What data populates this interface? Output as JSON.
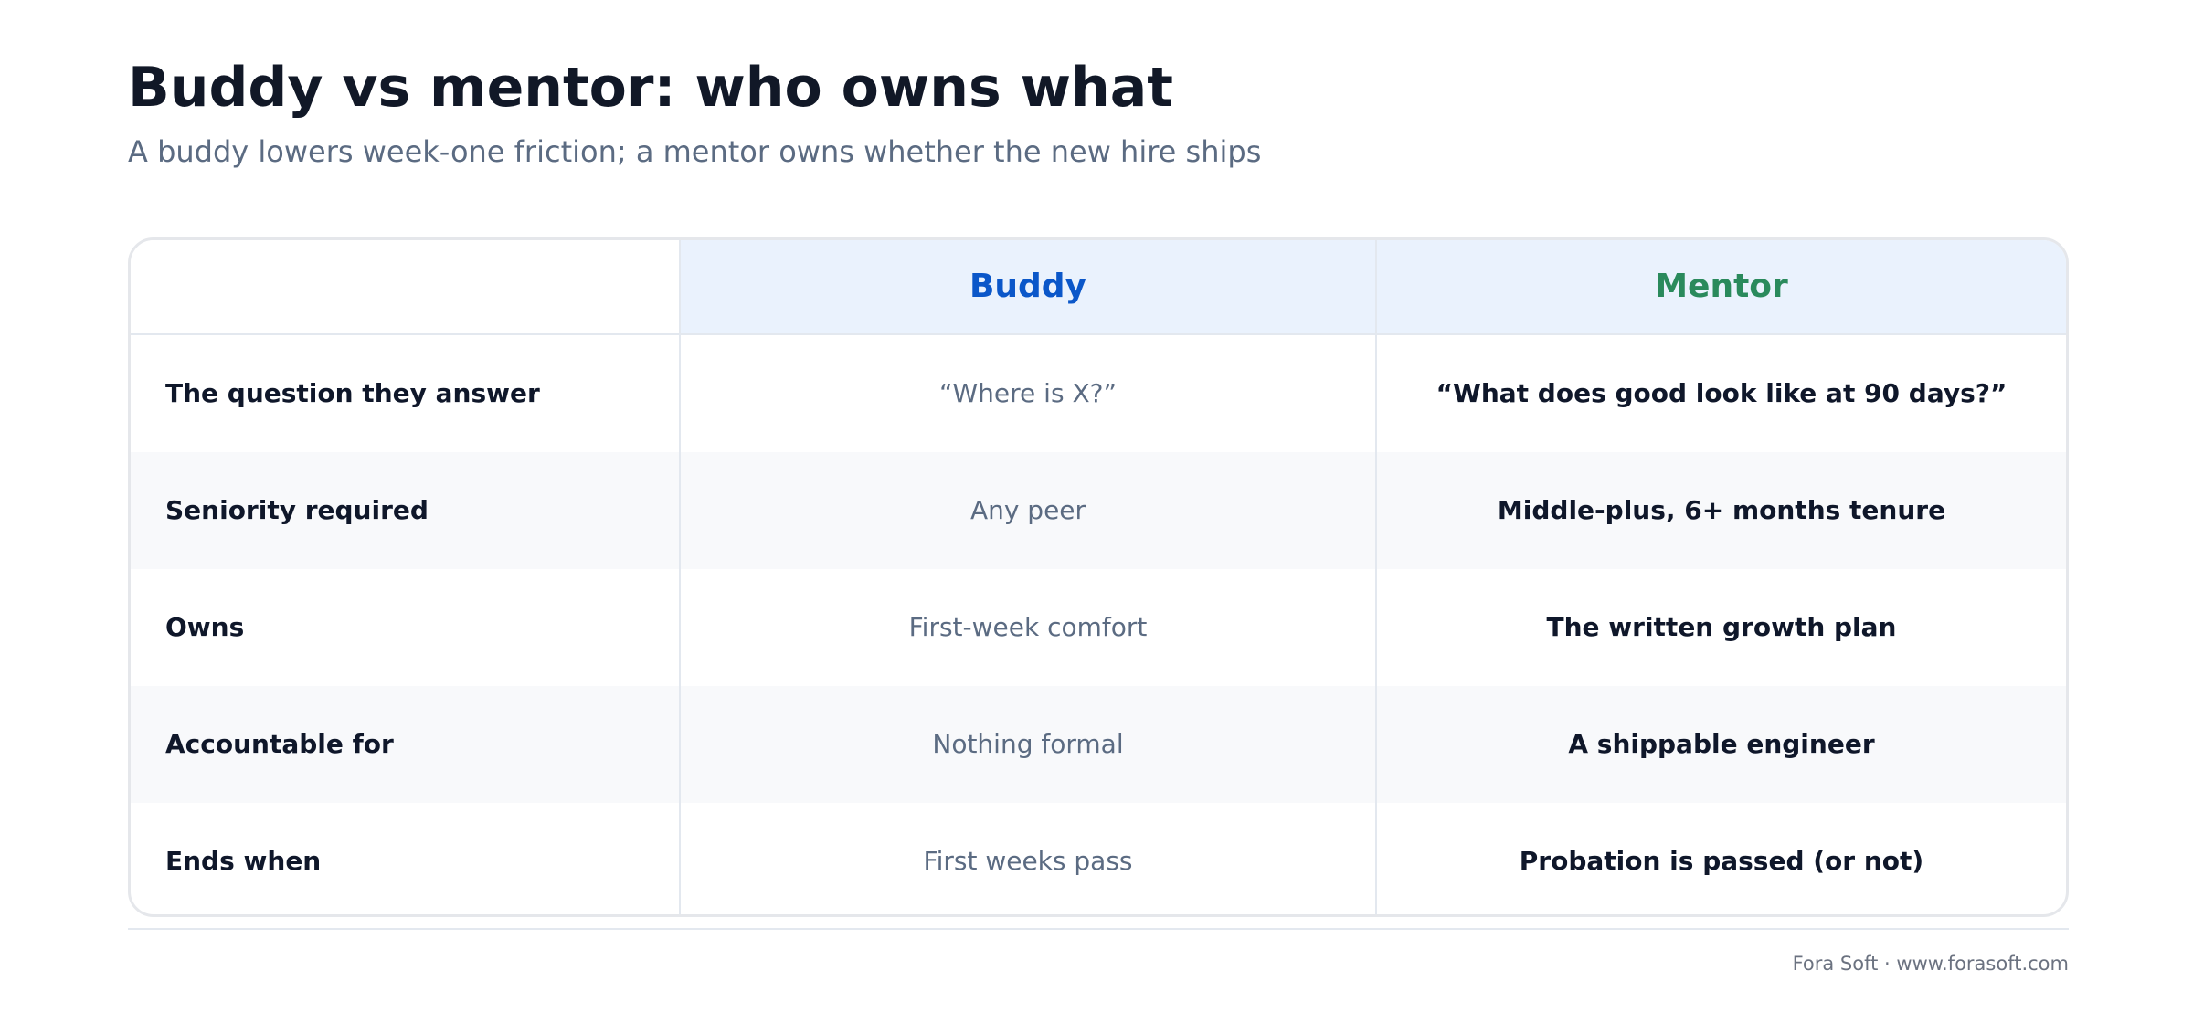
{
  "header": {
    "title": "Buddy vs mentor: who owns what",
    "subtitle": "A buddy lowers week-one friction; a mentor owns whether the new hire ships"
  },
  "table": {
    "columns": [
      "",
      "Buddy",
      "Mentor"
    ],
    "rows": [
      {
        "label": "The question they answer",
        "buddy": "“Where is X?”",
        "mentor": "“What does good look like at 90 days?”"
      },
      {
        "label": "Seniority required",
        "buddy": "Any peer",
        "mentor": "Middle-plus, 6+ months tenure"
      },
      {
        "label": "Owns",
        "buddy": "First-week comfort",
        "mentor": "The written growth plan"
      },
      {
        "label": "Accountable for",
        "buddy": "Nothing formal",
        "mentor": "A shippable engineer"
      },
      {
        "label": "Ends when",
        "buddy": "First weeks pass",
        "mentor": "Probation is passed (or not)"
      }
    ]
  },
  "footer": {
    "credit": "Fora Soft · www.forasoft.com"
  },
  "colors": {
    "buddy_accent": "#0b57c9",
    "mentor_accent": "#2a8a5c",
    "header_fill": "#eaf2fd"
  }
}
